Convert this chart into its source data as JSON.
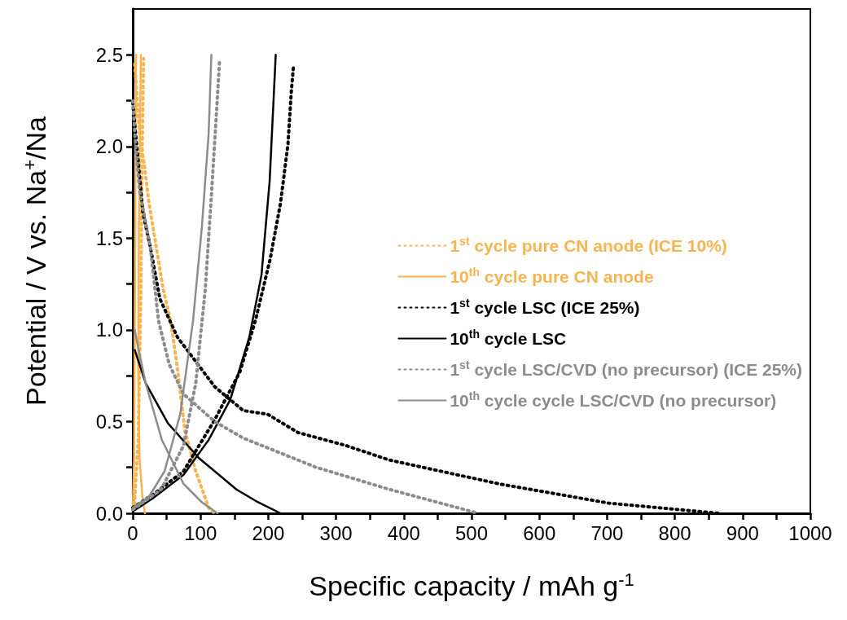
{
  "chart_data": {
    "type": "line",
    "xlabel": "Specific capacity / mAh g$^{-1}$",
    "ylabel": "Potential / V vs. Na$^{+}$/Na",
    "xlim": [
      0,
      1000
    ],
    "ylim": [
      0,
      2.75
    ],
    "xticks": [
      0,
      {
        "value": 50,
        "label": null
      },
      100,
      {
        "value": 150,
        "label": null
      },
      200,
      {
        "value": 250,
        "label": null
      },
      300,
      {
        "value": 350,
        "label": null
      },
      400,
      {
        "value": 450,
        "label": null
      },
      500,
      {
        "value": 550,
        "label": null
      },
      600,
      {
        "value": 650,
        "label": null
      },
      700,
      {
        "value": 750,
        "label": null
      },
      800,
      {
        "value": 850,
        "label": null
      },
      900,
      {
        "value": 950,
        "label": null
      },
      1000
    ],
    "yticks": [
      {
        "value": 0,
        "label": "0.0"
      },
      {
        "value": 0.25,
        "label": null
      },
      {
        "value": 0.5,
        "label": "0.5"
      },
      {
        "value": 0.75,
        "label": null
      },
      {
        "value": 1,
        "label": "1.0"
      },
      {
        "value": 1.25,
        "label": null
      },
      {
        "value": 1.5,
        "label": "1.5"
      },
      {
        "value": 1.75,
        "label": null
      },
      {
        "value": 2,
        "label": "2.0"
      },
      {
        "value": 2.25,
        "label": null
      },
      {
        "value": 2.5,
        "label": "2.5"
      }
    ],
    "grid": false,
    "legend": "right",
    "marker": "none",
    "series": [
      {
        "name": "1$^{st}$ cycle pure CN anode (ICE 10%)",
        "color": "#f7b451",
        "line_style": "dotted",
        "x": [
          3,
          10,
          17,
          24,
          33,
          45,
          56,
          66,
          77,
          93,
          112,
          121
        ],
        "values": [
          2.45,
          2.07,
          1.9,
          1.69,
          1.49,
          1.22,
          1.05,
          0.79,
          0.45,
          0.23,
          0.03,
          0
        ]
      },
      {
        "color": "#f7b451",
        "line_style": "dotted",
        "x": [
          2,
          8,
          12,
          14,
          16
        ],
        "values": [
          0.02,
          0.4,
          1.2,
          2.0,
          2.48
        ]
      },
      {
        "name": "10$^{th}$ cycle pure CN anode",
        "color": "#f7b451",
        "line_style": "solid",
        "x": [
          12,
          9,
          8,
          10,
          14,
          18
        ],
        "values": [
          2.5,
          1.5,
          0.8,
          0.3,
          0.1,
          0
        ]
      },
      {
        "color": "#f7b451",
        "line_style": "solid",
        "x": [
          0,
          2,
          3,
          4,
          5
        ],
        "values": [
          0.02,
          0.3,
          1.0,
          2.0,
          2.5
        ]
      },
      {
        "name": "1$^{st}$ cycle LSC (ICE 25%)",
        "color": "#000000",
        "line_style": "dotted",
        "x": [
          0,
          6,
          15,
          26,
          40,
          66,
          121,
          163,
          199,
          244,
          314,
          379,
          541,
          703,
          865
        ],
        "values": [
          2.24,
          2.0,
          1.64,
          1.45,
          1.17,
          0.96,
          0.69,
          0.56,
          0.54,
          0.44,
          0.37,
          0.29,
          0.16,
          0.055,
          0
        ]
      },
      {
        "color": "#000000",
        "line_style": "dotted",
        "x": [
          0,
          33,
          75,
          121,
          158,
          181,
          203,
          218,
          229,
          234,
          237
        ],
        "values": [
          0.03,
          0.11,
          0.23,
          0.51,
          0.77,
          1.05,
          1.39,
          1.69,
          2.01,
          2.3,
          2.43
        ]
      },
      {
        "name": "10$^{th}$ cycle LSC",
        "color": "#000000",
        "line_style": "solid",
        "x": [
          3,
          19,
          52,
          98,
          153,
          185,
          218
        ],
        "values": [
          0.89,
          0.71,
          0.49,
          0.3,
          0.13,
          0.06,
          0
        ]
      },
      {
        "color": "#000000",
        "line_style": "solid",
        "x": [
          0,
          29,
          75,
          112,
          144,
          172,
          190,
          202,
          211
        ],
        "values": [
          0.01,
          0.08,
          0.21,
          0.4,
          0.62,
          0.96,
          1.3,
          1.81,
          2.5
        ]
      },
      {
        "name": "1$^{st}$ cycle LSC/CVD (no precursor) (ICE 25%)",
        "color": "#8c8c8c",
        "line_style": "dotted",
        "x": [
          0,
          3,
          10,
          26,
          38,
          54,
          75,
          121,
          163,
          190,
          271,
          379,
          510
        ],
        "values": [
          2.25,
          2.07,
          1.76,
          1.45,
          1.05,
          0.81,
          0.65,
          0.5,
          0.41,
          0.37,
          0.25,
          0.13,
          0
        ]
      },
      {
        "color": "#8c8c8c",
        "line_style": "dotted",
        "x": [
          0,
          42,
          75,
          93,
          107,
          116,
          123,
          128
        ],
        "values": [
          0.02,
          0.13,
          0.37,
          0.71,
          1.22,
          1.73,
          2.15,
          2.46
        ]
      },
      {
        "name": "10$^{th}$ cycle cycle LSC/CVD (no precursor)",
        "color": "#8c8c8c",
        "line_style": "solid",
        "x": [
          3,
          6,
          19,
          43,
          75,
          102,
          125
        ],
        "values": [
          1.0,
          0.94,
          0.71,
          0.4,
          0.16,
          0.06,
          0
        ]
      },
      {
        "color": "#8c8c8c",
        "line_style": "solid",
        "x": [
          0,
          24,
          47,
          70,
          89,
          102,
          112,
          116
        ],
        "values": [
          0.03,
          0.09,
          0.23,
          0.54,
          1.05,
          1.56,
          2.07,
          2.5
        ]
      }
    ]
  }
}
